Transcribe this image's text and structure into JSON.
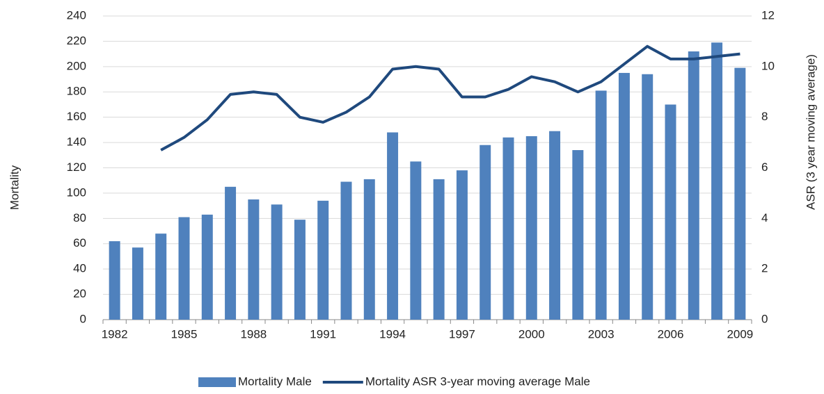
{
  "chart_data": {
    "type": "bar-line",
    "categories": [
      "1982",
      null,
      null,
      "1985",
      null,
      null,
      "1988",
      null,
      null,
      "1991",
      null,
      null,
      "1994",
      null,
      null,
      "1997",
      null,
      null,
      "2000",
      null,
      null,
      "2003",
      null,
      null,
      "2006",
      null,
      null,
      "2009"
    ],
    "series": [
      {
        "name": "Mortality Male",
        "type": "bar",
        "color": "#4f81bd",
        "values": [
          62,
          57,
          68,
          81,
          83,
          105,
          95,
          91,
          79,
          94,
          109,
          111,
          148,
          125,
          111,
          118,
          138,
          144,
          145,
          149,
          134,
          181,
          195,
          194,
          170,
          212,
          219,
          199
        ]
      },
      {
        "name": "Mortality ASR 3-year moving average Male",
        "type": "line",
        "axis": "y2",
        "color": "#1f497d",
        "values": [
          null,
          null,
          6.7,
          7.2,
          7.9,
          8.9,
          9.0,
          8.9,
          8.0,
          7.8,
          8.2,
          8.8,
          9.9,
          10.0,
          9.9,
          8.8,
          8.8,
          9.1,
          9.6,
          9.4,
          9.0,
          9.4,
          10.1,
          10.8,
          10.3,
          10.3,
          10.4,
          10.5
        ]
      }
    ],
    "y_label": "Mortality",
    "y2_label": "ASR (3 year moving average)",
    "ylim": [
      0,
      240
    ],
    "yticks": [
      0,
      20,
      40,
      60,
      80,
      100,
      120,
      140,
      160,
      180,
      200,
      220,
      240
    ],
    "y2lim": [
      0,
      12
    ],
    "y2ticks": [
      0,
      2,
      4,
      6,
      8,
      10,
      12
    ],
    "grid": true,
    "legend": "bottom"
  }
}
